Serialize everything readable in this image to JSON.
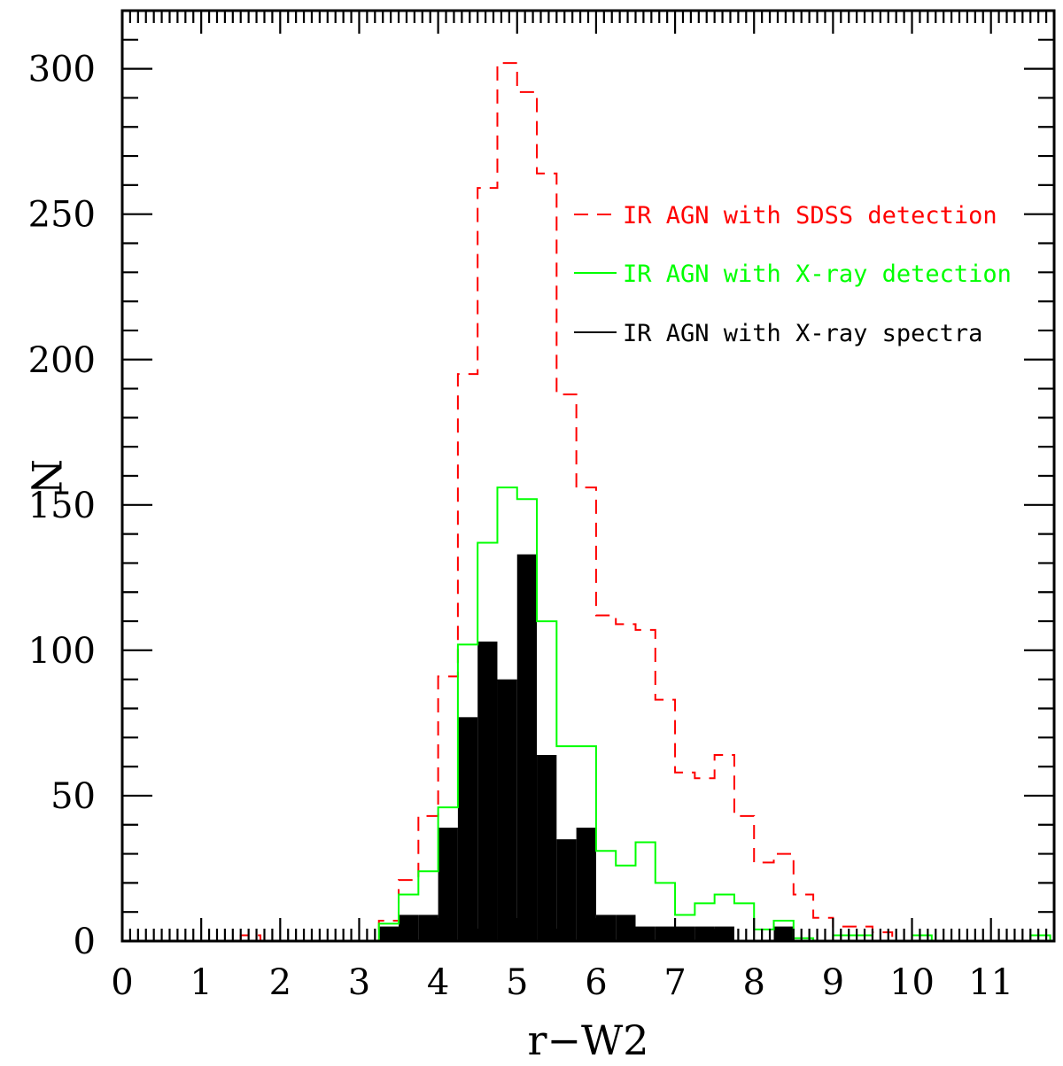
{
  "chart_data": {
    "type": "histogram",
    "xlabel": "r−W2",
    "ylabel": "N",
    "xlim": [
      0,
      11.8
    ],
    "ylim": [
      0,
      320
    ],
    "grid": false,
    "bin_width": 0.25,
    "x_ticks": [
      "0",
      "1",
      "2",
      "3",
      "4",
      "5",
      "6",
      "7",
      "8",
      "9",
      "10",
      "11"
    ],
    "y_ticks": [
      "0",
      "50",
      "100",
      "150",
      "200",
      "250",
      "300"
    ],
    "legend": {
      "placement": "right",
      "entries": [
        {
          "label": "IR AGN with SDSS detection",
          "color": "#ff0000",
          "style": "dashed"
        },
        {
          "label": "IR AGN with X-ray detection",
          "color": "#00ff00",
          "style": "solid"
        },
        {
          "label": "IR AGN with X-ray spectra",
          "color": "#000000",
          "style": "solid"
        }
      ]
    },
    "series": [
      {
        "name": "IR AGN with SDSS detection",
        "color": "#ff0000",
        "style": "dashed-step",
        "bins_start": [
          1.5,
          1.75,
          2.0,
          2.25,
          2.5,
          2.75,
          3.0,
          3.25,
          3.5,
          3.75,
          4.0,
          4.25,
          4.5,
          4.75,
          5.0,
          5.25,
          5.5,
          5.75,
          6.0,
          6.25,
          6.5,
          6.75,
          7.0,
          7.25,
          7.5,
          7.75,
          8.0,
          8.25,
          8.5,
          8.75,
          9.0,
          9.25,
          9.5,
          9.75,
          10.0
        ],
        "values": [
          2,
          0,
          0,
          0,
          0,
          0,
          0,
          7,
          21,
          43,
          91,
          195,
          259,
          302,
          292,
          264,
          188,
          156,
          112,
          109,
          107,
          83,
          58,
          56,
          64,
          43,
          27,
          30,
          16,
          8,
          5,
          5,
          3,
          0,
          0
        ]
      },
      {
        "name": "IR AGN with X-ray detection",
        "color": "#00ff00",
        "style": "step",
        "bins_start": [
          3.25,
          3.5,
          3.75,
          4.0,
          4.25,
          4.5,
          4.75,
          5.0,
          5.25,
          5.5,
          5.75,
          6.0,
          6.25,
          6.5,
          6.75,
          7.0,
          7.25,
          7.5,
          7.75,
          8.0,
          8.25,
          8.5,
          8.75,
          9.0,
          9.25,
          9.5,
          9.75,
          10.0,
          10.25,
          10.5,
          10.75,
          11.0,
          11.25,
          11.5
        ],
        "values": [
          6,
          16,
          24,
          46,
          102,
          137,
          156,
          152,
          110,
          67,
          67,
          31,
          26,
          34,
          20,
          9,
          13,
          16,
          13,
          4,
          7,
          1,
          0,
          2,
          2,
          0,
          0,
          2,
          0,
          0,
          0,
          0,
          0,
          2
        ]
      },
      {
        "name": "IR AGN with X-ray spectra",
        "color": "#000000",
        "style": "filled",
        "bins_start": [
          3.0,
          3.25,
          3.5,
          3.75,
          4.0,
          4.25,
          4.5,
          4.75,
          5.0,
          5.25,
          5.5,
          5.75,
          6.0,
          6.25,
          6.5,
          6.75,
          7.0,
          7.25,
          7.5,
          7.75,
          8.0,
          8.25
        ],
        "values": [
          0,
          5,
          9,
          9,
          39,
          77,
          103,
          90,
          133,
          64,
          35,
          39,
          9,
          9,
          5,
          5,
          5,
          5,
          5,
          0,
          0,
          5
        ]
      }
    ]
  }
}
